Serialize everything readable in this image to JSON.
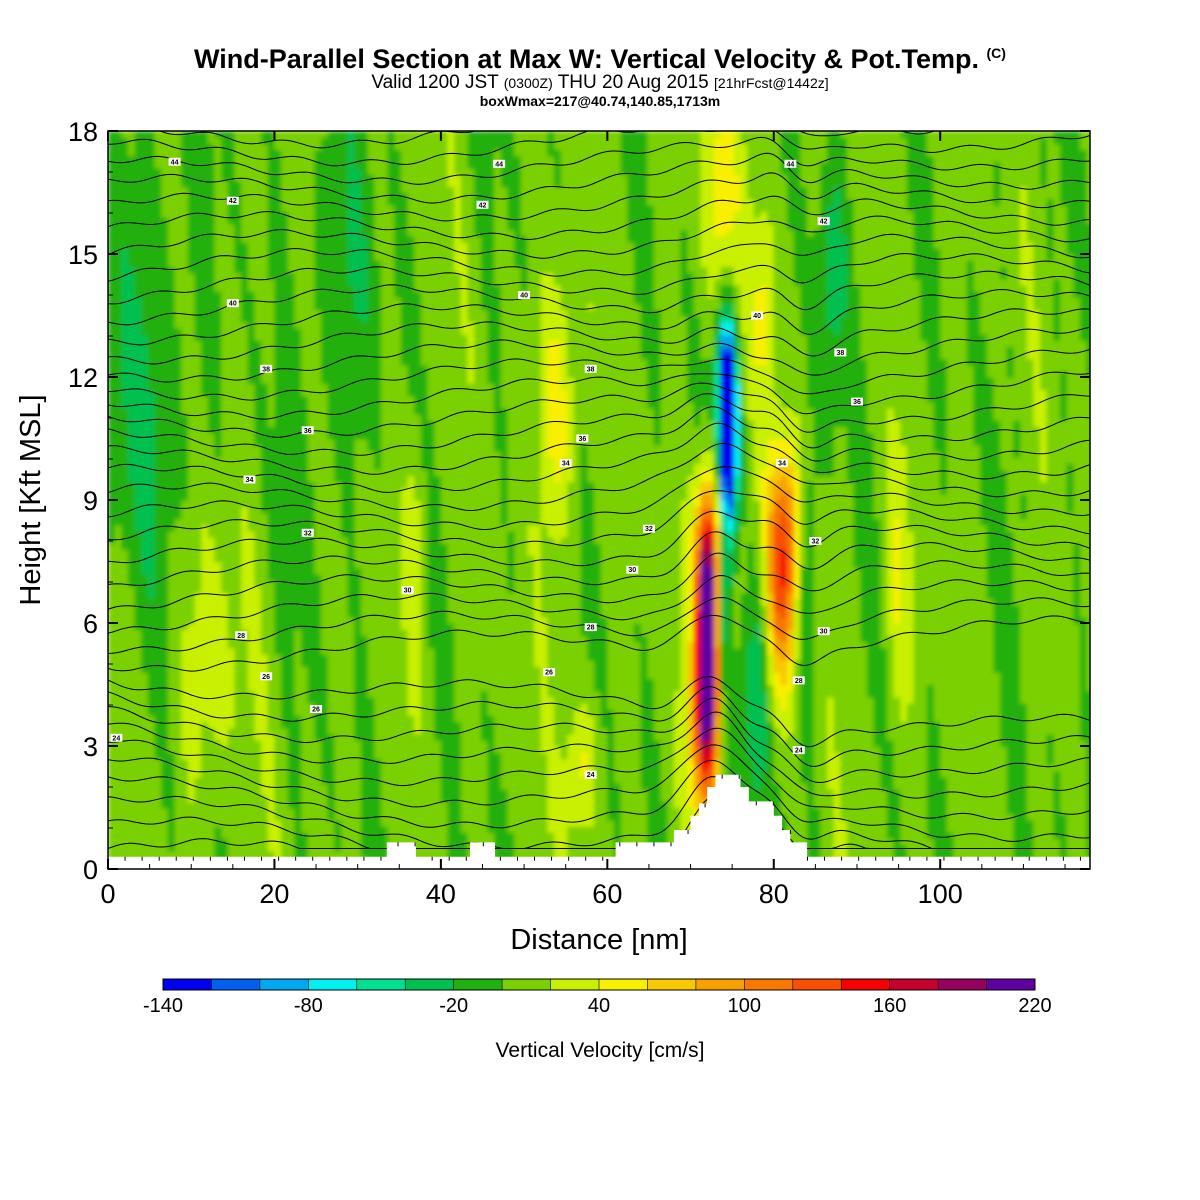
{
  "header": {
    "title_main": "Wind-Parallel Section at Max W: Vertical Velocity & Pot.Temp.",
    "title_mark": "(C)",
    "subtitle_a": "Valid 1200 JST",
    "subtitle_b": "(0300Z)",
    "subtitle_c": "THU 20 Aug 2015",
    "subtitle_d": "[21hrFcst@1442z]",
    "info": "boxWmax=217@40.74,140.85,1713m"
  },
  "chart_data": {
    "type": "heatmap",
    "xlabel": "Distance [nm]",
    "ylabel": "Height [Kft MSL]",
    "xlim": [
      0,
      118
    ],
    "ylim": [
      0,
      18
    ],
    "x_ticks": [
      0,
      20,
      40,
      60,
      80,
      100
    ],
    "y_ticks": [
      0,
      3,
      6,
      9,
      12,
      15,
      18
    ],
    "colorbar": {
      "label": "Vertical Velocity [cm/s]",
      "min": -140,
      "max": 220,
      "step": 20,
      "tick_values": [
        -140,
        -80,
        -20,
        40,
        100,
        160,
        220
      ],
      "tick_labels": [
        "-140",
        "-80",
        "-20",
        "40",
        "100",
        "160",
        "220"
      ],
      "colors": [
        "#0000f0",
        "#0060f0",
        "#00a8f0",
        "#00f0f0",
        "#00e090",
        "#00c050",
        "#20b010",
        "#7ad000",
        "#c8f000",
        "#f8f000",
        "#f8c800",
        "#f8a000",
        "#f87800",
        "#f85000",
        "#f80000",
        "#c80030",
        "#980060",
        "#6000a0"
      ]
    },
    "theta_labels": [
      "44",
      "42",
      "40",
      "38",
      "36",
      "34",
      "32",
      "30",
      "28",
      "26",
      "24"
    ],
    "terrain_kft": [
      [
        0,
        0.3
      ],
      [
        33.5,
        0.3
      ],
      [
        33.5,
        0.65
      ],
      [
        37,
        0.65
      ],
      [
        37,
        0.3
      ],
      [
        43.5,
        0.3
      ],
      [
        43.5,
        0.65
      ],
      [
        46.5,
        0.65
      ],
      [
        46.5,
        0.3
      ],
      [
        61,
        0.3
      ],
      [
        61,
        0.65
      ],
      [
        68,
        0.65
      ],
      [
        68,
        0.95
      ],
      [
        70,
        0.95
      ],
      [
        70,
        1.3
      ],
      [
        71,
        1.3
      ],
      [
        71,
        1.6
      ],
      [
        72,
        1.6
      ],
      [
        72,
        2.0
      ],
      [
        73,
        2.0
      ],
      [
        73,
        2.3
      ],
      [
        76,
        2.3
      ],
      [
        76,
        2.0
      ],
      [
        77,
        2.0
      ],
      [
        77,
        1.65
      ],
      [
        80,
        1.65
      ],
      [
        80,
        1.3
      ],
      [
        81,
        1.3
      ],
      [
        81,
        0.95
      ],
      [
        82,
        0.95
      ],
      [
        82,
        0.65
      ],
      [
        84,
        0.65
      ],
      [
        84,
        0.3
      ],
      [
        118,
        0.3
      ]
    ],
    "w_features": [
      {
        "x": 72,
        "y": 5.6,
        "w": 220
      },
      {
        "x": 72,
        "y": 7.6,
        "w": 160
      },
      {
        "x": 74.5,
        "y": 10.5,
        "w": -140
      },
      {
        "x": 81,
        "y": 6.8,
        "w": 100
      },
      {
        "x": 57,
        "y": 2.5,
        "w": 40
      },
      {
        "x": 54,
        "y": 11.2,
        "w": 40
      },
      {
        "x": 73.5,
        "y": 16.5,
        "w": 40
      }
    ]
  }
}
